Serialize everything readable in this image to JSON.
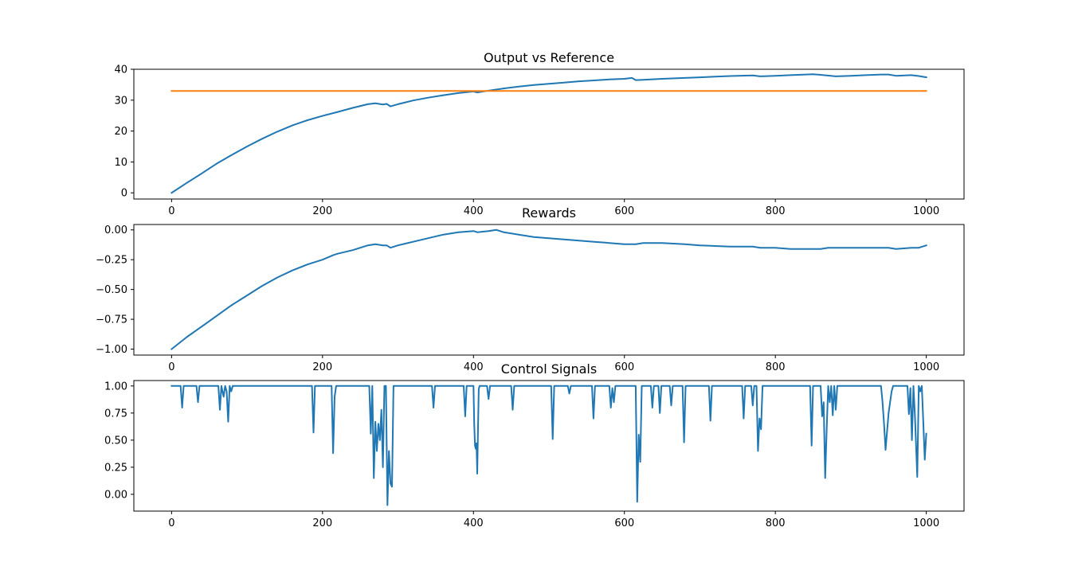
{
  "chart_data": [
    {
      "type": "line",
      "title": "Output vs Reference",
      "xlabel": "",
      "ylabel": "",
      "xlim": [
        -50,
        1050
      ],
      "ylim": [
        -2,
        40
      ],
      "xticks": [
        0,
        200,
        400,
        600,
        800,
        1000
      ],
      "yticks": [
        0,
        10,
        20,
        30,
        40
      ],
      "xtick_labels": [
        "0",
        "200",
        "400",
        "600",
        "800",
        "1000"
      ],
      "ytick_labels": [
        "0",
        "10",
        "20",
        "30",
        "40"
      ],
      "grid": false,
      "series": [
        {
          "color": "#1f77b4",
          "x": [
            0,
            20,
            40,
            60,
            80,
            100,
            120,
            140,
            160,
            180,
            200,
            220,
            240,
            260,
            270,
            280,
            285,
            290,
            300,
            320,
            340,
            360,
            380,
            400,
            405,
            420,
            440,
            460,
            480,
            500,
            520,
            540,
            560,
            580,
            600,
            610,
            615,
            625,
            650,
            680,
            700,
            740,
            770,
            780,
            800,
            820,
            840,
            850,
            860,
            880,
            900,
            920,
            940,
            950,
            960,
            980,
            990,
            1000
          ],
          "y": [
            0,
            3.2,
            6.3,
            9.5,
            12.3,
            15.0,
            17.5,
            19.8,
            21.8,
            23.5,
            24.9,
            26.2,
            27.5,
            28.7,
            29.0,
            28.6,
            28.8,
            28.0,
            28.7,
            29.9,
            30.8,
            31.6,
            32.3,
            32.8,
            32.5,
            33.1,
            33.8,
            34.4,
            34.9,
            35.3,
            35.7,
            36.1,
            36.4,
            36.7,
            36.9,
            37.2,
            36.5,
            36.6,
            36.9,
            37.2,
            37.4,
            37.8,
            38.0,
            37.7,
            37.9,
            38.1,
            38.3,
            38.4,
            38.2,
            37.7,
            37.9,
            38.1,
            38.3,
            38.3,
            37.9,
            38.1,
            37.8,
            37.4
          ]
        },
        {
          "color": "#ff7f0e",
          "x": [
            0,
            1000
          ],
          "y": [
            33,
            33
          ]
        }
      ]
    },
    {
      "type": "line",
      "title": "Rewards",
      "xlabel": "",
      "ylabel": "",
      "xlim": [
        -50,
        1050
      ],
      "ylim": [
        -1.05,
        0.045
      ],
      "xticks": [
        0,
        200,
        400,
        600,
        800,
        1000
      ],
      "yticks": [
        0,
        -0.25,
        -0.5,
        -0.75,
        -1.0
      ],
      "xtick_labels": [
        "0",
        "200",
        "400",
        "600",
        "800",
        "1000"
      ],
      "ytick_labels": [
        "0.00",
        "−0.25",
        "−0.50",
        "−0.75",
        "−1.00"
      ],
      "grid": false,
      "series": [
        {
          "color": "#1f77b4",
          "x": [
            0,
            20,
            40,
            60,
            80,
            100,
            120,
            140,
            160,
            180,
            200,
            215,
            220,
            240,
            260,
            270,
            280,
            285,
            290,
            300,
            320,
            340,
            360,
            380,
            400,
            405,
            420,
            430,
            440,
            460,
            480,
            500,
            520,
            540,
            560,
            580,
            600,
            610,
            615,
            625,
            650,
            680,
            700,
            740,
            770,
            780,
            800,
            820,
            840,
            850,
            860,
            870,
            880,
            900,
            920,
            940,
            950,
            960,
            980,
            990,
            1000
          ],
          "y": [
            -1.0,
            -0.9,
            -0.81,
            -0.72,
            -0.63,
            -0.55,
            -0.47,
            -0.4,
            -0.34,
            -0.29,
            -0.25,
            -0.21,
            -0.2,
            -0.17,
            -0.13,
            -0.12,
            -0.13,
            -0.13,
            -0.15,
            -0.13,
            -0.1,
            -0.07,
            -0.04,
            -0.02,
            -0.01,
            -0.02,
            -0.01,
            0.0,
            -0.02,
            -0.04,
            -0.06,
            -0.07,
            -0.08,
            -0.09,
            -0.1,
            -0.11,
            -0.12,
            -0.12,
            -0.12,
            -0.11,
            -0.11,
            -0.12,
            -0.13,
            -0.14,
            -0.14,
            -0.15,
            -0.15,
            -0.16,
            -0.16,
            -0.16,
            -0.16,
            -0.15,
            -0.15,
            -0.15,
            -0.15,
            -0.15,
            -0.15,
            -0.16,
            -0.15,
            -0.15,
            -0.13
          ]
        }
      ]
    },
    {
      "type": "line",
      "title": "Control Signals",
      "xlabel": "",
      "ylabel": "",
      "xlim": [
        -50,
        1050
      ],
      "ylim": [
        -0.155,
        1.05
      ],
      "xticks": [
        0,
        200,
        400,
        600,
        800,
        1000
      ],
      "yticks": [
        0,
        0.25,
        0.5,
        0.75,
        1.0
      ],
      "xtick_labels": [
        "0",
        "200",
        "400",
        "600",
        "800",
        "1000"
      ],
      "ytick_labels": [
        "0.00",
        "0.25",
        "0.50",
        "0.75",
        "1.00"
      ],
      "grid": false,
      "series": [
        {
          "color": "#1f77b4",
          "x": [
            0,
            12,
            14,
            16,
            33,
            35,
            37,
            62,
            64,
            66,
            69,
            71,
            73,
            75,
            77,
            79,
            81,
            186,
            188,
            190,
            212,
            214,
            216,
            218,
            262,
            264,
            266,
            268,
            270,
            272,
            274,
            276,
            278,
            280,
            282,
            284,
            286,
            288,
            290,
            292,
            294,
            296,
            345,
            347,
            349,
            387,
            389,
            391,
            400,
            401,
            402,
            403,
            404,
            405,
            406,
            407,
            408,
            418,
            420,
            422,
            450,
            452,
            454,
            503,
            505,
            507,
            525,
            527,
            529,
            557,
            559,
            561,
            580,
            582,
            584,
            586,
            588,
            590,
            615,
            617,
            619,
            621,
            623,
            635,
            637,
            639,
            645,
            647,
            649,
            660,
            662,
            664,
            677,
            679,
            681,
            712,
            714,
            716,
            756,
            758,
            760,
            768,
            770,
            772,
            775,
            777,
            779,
            781,
            783,
            846,
            848,
            850,
            860,
            862,
            864,
            866,
            868,
            870,
            872,
            874,
            876,
            878,
            880,
            882,
            940,
            942,
            944,
            946,
            950,
            952,
            954,
            956,
            975,
            977,
            979,
            981,
            983,
            985,
            988,
            990,
            992,
            994,
            996,
            998,
            1000
          ],
          "y": [
            1.0,
            1.0,
            0.8,
            1.0,
            1.0,
            0.85,
            1.0,
            1.0,
            0.78,
            1.0,
            0.9,
            1.0,
            0.95,
            0.67,
            1.0,
            0.95,
            1.0,
            1.0,
            0.57,
            1.0,
            1.0,
            0.38,
            0.9,
            1.0,
            1.0,
            0.56,
            1.0,
            0.15,
            0.67,
            0.4,
            0.65,
            0.5,
            0.78,
            0.25,
            1.0,
            1.0,
            -0.1,
            0.4,
            0.1,
            0.07,
            1.0,
            1.0,
            1.0,
            0.8,
            1.0,
            1.0,
            0.72,
            1.0,
            1.0,
            0.65,
            0.45,
            0.42,
            0.47,
            0.19,
            0.62,
            0.97,
            1.0,
            1.0,
            0.88,
            1.0,
            1.0,
            0.78,
            1.0,
            1.0,
            0.51,
            1.0,
            1.0,
            0.93,
            1.0,
            1.0,
            0.7,
            1.0,
            1.0,
            0.8,
            0.98,
            0.85,
            1.0,
            1.0,
            1.0,
            -0.07,
            0.55,
            0.3,
            1.0,
            1.0,
            0.8,
            1.0,
            1.0,
            0.75,
            1.0,
            1.0,
            0.82,
            1.0,
            1.0,
            0.48,
            1.0,
            1.0,
            0.68,
            1.0,
            1.0,
            0.7,
            1.0,
            1.0,
            0.82,
            1.0,
            1.0,
            0.4,
            0.7,
            0.6,
            1.0,
            1.0,
            0.45,
            1.0,
            1.0,
            0.72,
            0.85,
            0.15,
            0.6,
            1.0,
            0.85,
            1.0,
            0.73,
            1.0,
            0.78,
            1.0,
            1.0,
            0.85,
            0.65,
            0.41,
            0.75,
            0.85,
            0.95,
            1.0,
            1.0,
            0.74,
            0.98,
            0.5,
            1.0,
            0.72,
            0.16,
            1.0,
            0.95,
            1.0,
            0.68,
            0.32,
            0.56
          ]
        }
      ]
    }
  ]
}
